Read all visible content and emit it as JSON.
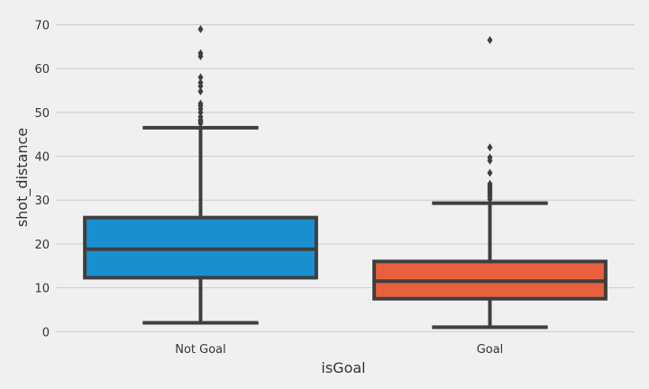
{
  "chart_data": {
    "type": "boxplot",
    "xlabel": "isGoal",
    "ylabel": "shot_distance",
    "ylim": [
      -2,
      74
    ],
    "yticks": [
      0,
      10,
      20,
      30,
      40,
      50,
      60,
      70
    ],
    "grid": "horizontal",
    "categories": [
      "Not Goal",
      "Goal"
    ],
    "boxes": [
      {
        "category": "Not Goal",
        "color": "#1a8fd0",
        "whisker_low": 2,
        "q1": 12.3,
        "median": 18.8,
        "q3": 26,
        "whisker_high": 46.5,
        "outliers": [
          47.5,
          48,
          48.3,
          49,
          50,
          50.8,
          51.5,
          52,
          54.8,
          56,
          56.8,
          58,
          62.8,
          63.5,
          69
        ]
      },
      {
        "category": "Goal",
        "color": "#e8603e",
        "whisker_low": 1,
        "q1": 7.5,
        "median": 11.5,
        "q3": 16,
        "whisker_high": 29.3,
        "outliers": [
          30.2,
          30.8,
          31.3,
          31.8,
          32.3,
          32.8,
          33.2,
          33.7,
          36.2,
          39,
          39.7,
          42,
          66.5
        ]
      }
    ]
  }
}
